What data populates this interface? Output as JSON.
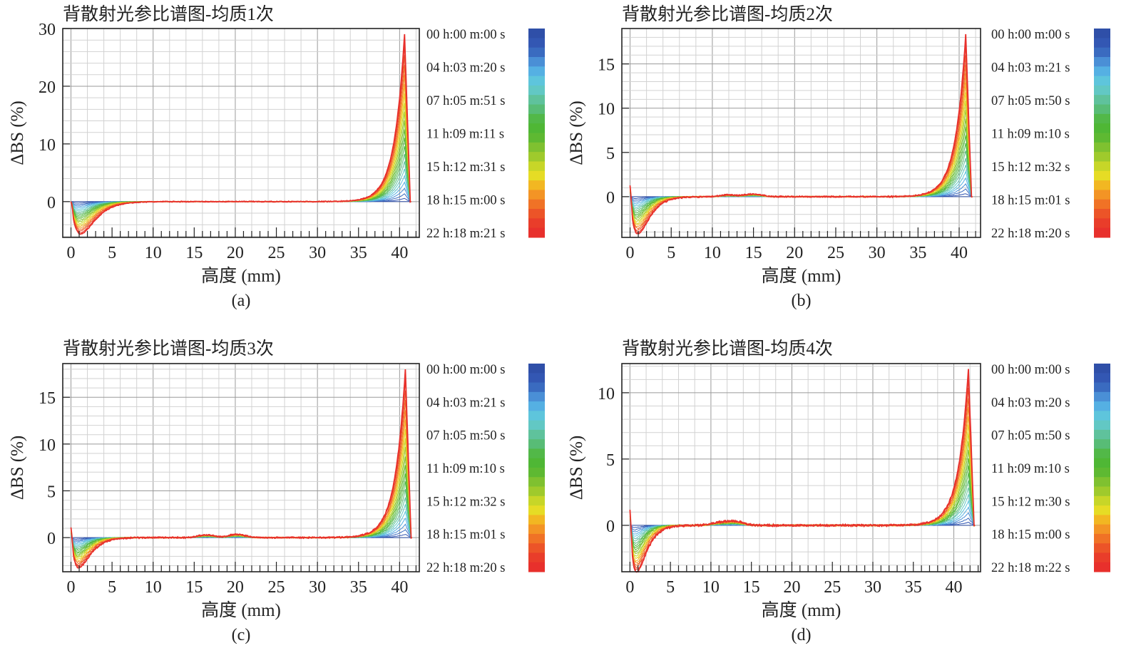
{
  "chart_data": [
    {
      "type": "line",
      "title": "背散射光参比谱图-均质1次",
      "caption": "(a)",
      "xlabel": "高度 (mm)",
      "ylabel": "ΔBS (%)",
      "xlim": [
        -1,
        42.4
      ],
      "ylim": [
        -6.2,
        30
      ],
      "xticks": [
        0,
        5,
        10,
        15,
        20,
        25,
        30,
        35,
        40
      ],
      "yticks": [
        0,
        10,
        20,
        30
      ],
      "legend_labels": [
        "00 h:00 m:00 s",
        "04 h:03 m:20 s",
        "07 h:05 m:51 s",
        "11 h:09 m:11 s",
        "15 h:12 m:31 s",
        "18 h:15 m:00 s",
        "22 h:18 m:21 s"
      ],
      "curve_count": 22,
      "final_curve": {
        "peak_value": 29,
        "peak_height_mm": 40.6,
        "min_value": -5.6,
        "min_height_mm": 1.0,
        "bottom_spike": 0,
        "bumps": []
      }
    },
    {
      "type": "line",
      "title": "背散射光参比谱图-均质2次",
      "caption": "(b)",
      "xlabel": "高度 (mm)",
      "ylabel": "ΔBS (%)",
      "xlim": [
        -1,
        42.6
      ],
      "ylim": [
        -4.6,
        19
      ],
      "xticks": [
        0,
        5,
        10,
        15,
        20,
        25,
        30,
        35,
        40
      ],
      "yticks": [
        0,
        5,
        10,
        15
      ],
      "legend_labels": [
        "00 h:00 m:00 s",
        "04 h:03 m:21 s",
        "07 h:05 m:50 s",
        "11 h:09 m:10 s",
        "15 h:12 m:32 s",
        "18 h:15 m:01 s",
        "22 h:18 m:20 s"
      ],
      "curve_count": 22,
      "final_curve": {
        "peak_value": 18.3,
        "peak_height_mm": 40.8,
        "min_value": -4.2,
        "min_height_mm": 0.8,
        "bottom_spike": 1.2,
        "bumps": [
          {
            "at_mm": 15,
            "value": 0.3
          },
          {
            "at_mm": 12,
            "value": 0.2
          }
        ]
      }
    },
    {
      "type": "line",
      "title": "背散射光参比谱图-均质3次",
      "caption": "(c)",
      "xlabel": "高度 (mm)",
      "ylabel": "ΔBS (%)",
      "xlim": [
        -1,
        42.4
      ],
      "ylim": [
        -3.65,
        18.6
      ],
      "xticks": [
        0,
        5,
        10,
        15,
        20,
        25,
        30,
        35,
        40
      ],
      "yticks": [
        0,
        5,
        10,
        15
      ],
      "legend_labels": [
        "00 h:00 m:00 s",
        "04 h:03 m:21 s",
        "07 h:05 m:50 s",
        "11 h:09 m:10 s",
        "15 h:12 m:32 s",
        "18 h:15 m:01 s",
        "22 h:18 m:20 s"
      ],
      "curve_count": 22,
      "final_curve": {
        "peak_value": 18,
        "peak_height_mm": 40.7,
        "min_value": -3.2,
        "min_height_mm": 0.8,
        "bottom_spike": 1.1,
        "bumps": [
          {
            "at_mm": 16.5,
            "value": 0.3
          },
          {
            "at_mm": 20.2,
            "value": 0.35
          }
        ]
      }
    },
    {
      "type": "line",
      "title": "背散射光参比谱图-均质4次",
      "caption": "(d)",
      "xlabel": "高度 (mm)",
      "ylabel": "ΔBS (%)",
      "xlim": [
        -1,
        43.3
      ],
      "ylim": [
        -3.5,
        12.2
      ],
      "xticks": [
        0,
        5,
        10,
        15,
        20,
        25,
        30,
        35,
        40
      ],
      "yticks": [
        0,
        5,
        10
      ],
      "legend_labels": [
        "00 h:00 m:00 s",
        "04 h:03 m:20 s",
        "07 h:05 m:50 s",
        "11 h:09 m:10 s",
        "15 h:12 m:30 s",
        "18 h:15 m:00 s",
        "22 h:18 m:22 s"
      ],
      "curve_count": 22,
      "final_curve": {
        "peak_value": 11.8,
        "peak_height_mm": 41.8,
        "min_value": -3.5,
        "min_height_mm": 0.7,
        "bottom_spike": 1.2,
        "bumps": [
          {
            "at_mm": 13,
            "value": 0.3
          },
          {
            "at_mm": 11,
            "value": 0.2
          }
        ]
      }
    }
  ],
  "colorbar_colors": [
    "#2f4fa8",
    "#3357b3",
    "#3a6bc0",
    "#4a8fd6",
    "#55b0e3",
    "#5ec5dc",
    "#62c8c4",
    "#5fc29c",
    "#58bc76",
    "#52b848",
    "#4fb735",
    "#5eb932",
    "#7fc130",
    "#9fca2c",
    "#c7d628",
    "#e6dc25",
    "#f2b722",
    "#f39425",
    "#f07226",
    "#ec5428",
    "#e93d2a",
    "#e8302c"
  ],
  "colors": {
    "grid_major": "#9a9a9a",
    "grid_minor": "#d2d2d2",
    "axis": "#222222"
  }
}
